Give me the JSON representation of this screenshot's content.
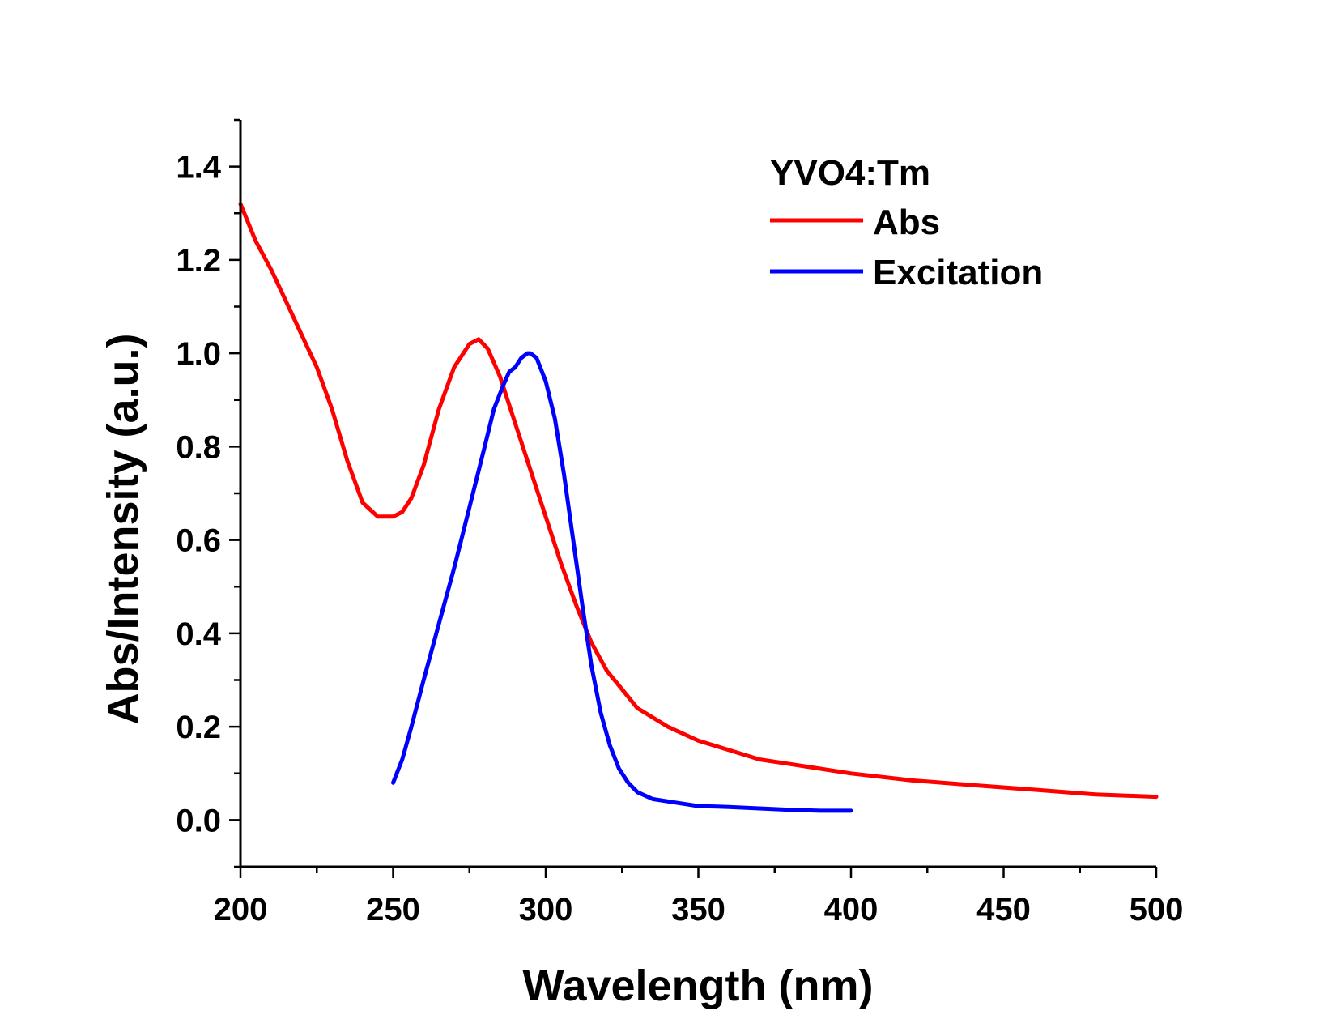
{
  "chart_data": {
    "type": "line",
    "title": "",
    "xlabel": "Wavelength (nm)",
    "ylabel": "Abs/Intensity (a.u.)",
    "xlim": [
      200,
      500
    ],
    "ylim": [
      -0.1,
      1.5
    ],
    "x_ticks": [
      "200",
      "250",
      "300",
      "350",
      "400",
      "450",
      "500"
    ],
    "y_ticks": [
      "0.0",
      "0.2",
      "0.4",
      "0.6",
      "0.8",
      "1.0",
      "1.2",
      "1.4"
    ],
    "x_tick_values": [
      200,
      250,
      300,
      350,
      400,
      450,
      500
    ],
    "y_tick_values": [
      0,
      0.2,
      0.4,
      0.6,
      0.8,
      1.0,
      1.2,
      1.4
    ],
    "grid": false,
    "legend_position": "top-right",
    "legend_title": "YVO4:Tm",
    "series": [
      {
        "name": "Abs",
        "color": "#ff0000",
        "x": [
          200,
          205,
          210,
          215,
          220,
          225,
          230,
          235,
          240,
          245,
          250,
          253,
          256,
          260,
          265,
          270,
          275,
          278,
          281,
          285,
          290,
          295,
          300,
          305,
          310,
          315,
          320,
          325,
          330,
          340,
          350,
          360,
          370,
          380,
          390,
          400,
          420,
          440,
          460,
          480,
          500
        ],
        "y": [
          1.32,
          1.24,
          1.18,
          1.11,
          1.04,
          0.97,
          0.88,
          0.77,
          0.68,
          0.65,
          0.65,
          0.66,
          0.69,
          0.76,
          0.88,
          0.97,
          1.02,
          1.03,
          1.01,
          0.95,
          0.85,
          0.75,
          0.65,
          0.55,
          0.46,
          0.38,
          0.32,
          0.28,
          0.24,
          0.2,
          0.17,
          0.15,
          0.13,
          0.12,
          0.11,
          0.1,
          0.085,
          0.075,
          0.065,
          0.055,
          0.05
        ]
      },
      {
        "name": "Excitation",
        "color": "#0000ff",
        "x": [
          250,
          253,
          256,
          260,
          265,
          270,
          275,
          280,
          283,
          286,
          288,
          290,
          292,
          294,
          295,
          297,
          300,
          303,
          306,
          309,
          312,
          315,
          318,
          321,
          324,
          327,
          330,
          335,
          340,
          345,
          350,
          360,
          370,
          380,
          390,
          400
        ],
        "y": [
          0.08,
          0.13,
          0.2,
          0.3,
          0.42,
          0.54,
          0.67,
          0.8,
          0.88,
          0.93,
          0.96,
          0.97,
          0.99,
          1.0,
          1.0,
          0.99,
          0.94,
          0.86,
          0.74,
          0.6,
          0.46,
          0.33,
          0.23,
          0.16,
          0.11,
          0.08,
          0.06,
          0.045,
          0.04,
          0.035,
          0.03,
          0.028,
          0.025,
          0.022,
          0.02,
          0.02
        ]
      }
    ]
  }
}
